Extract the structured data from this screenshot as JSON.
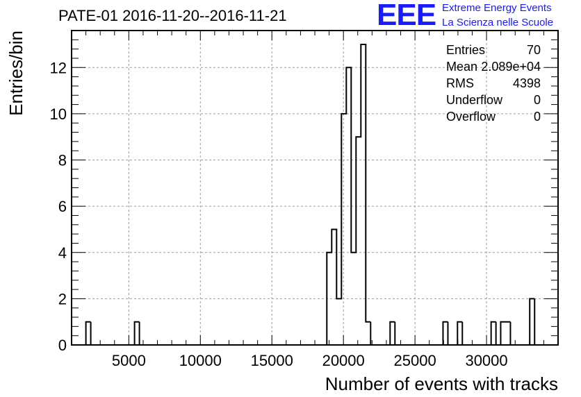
{
  "header": {
    "title": "PATE-01 2016-11-20--2016-11-21",
    "logo_mark": "EEE",
    "logo_line1": "Extreme Energy Events",
    "logo_line2": "La Scienza nelle Scuole",
    "logo_color": "#1a1aff"
  },
  "stats": [
    {
      "label": "Entries",
      "value": "70"
    },
    {
      "label": "Mean",
      "value": "2.089e+04"
    },
    {
      "label": "RMS",
      "value": "4398"
    },
    {
      "label": "Underflow",
      "value": "0"
    },
    {
      "label": "Overflow",
      "value": "0"
    }
  ],
  "chart_data": {
    "type": "histogram",
    "title": "PATE-01 2016-11-20--2016-11-21",
    "xlabel": "Number of events with tracks",
    "ylabel": "Entries/bin",
    "xlim": [
      1000,
      35000
    ],
    "ylim": [
      0,
      13.6
    ],
    "x_ticks": [
      5000,
      10000,
      15000,
      20000,
      25000,
      30000
    ],
    "y_ticks": [
      0,
      2,
      4,
      6,
      8,
      10,
      12
    ],
    "grid": true,
    "line_color": "#000000",
    "bins": [
      {
        "x0": 2000,
        "x1": 2340,
        "count": 1
      },
      {
        "x0": 5400,
        "x1": 5740,
        "count": 1
      },
      {
        "x0": 18840,
        "x1": 19180,
        "count": 4
      },
      {
        "x0": 19180,
        "x1": 19520,
        "count": 5
      },
      {
        "x0": 19520,
        "x1": 19860,
        "count": 2
      },
      {
        "x0": 19860,
        "x1": 20200,
        "count": 10
      },
      {
        "x0": 20200,
        "x1": 20540,
        "count": 12
      },
      {
        "x0": 20540,
        "x1": 20880,
        "count": 4
      },
      {
        "x0": 20880,
        "x1": 21220,
        "count": 9
      },
      {
        "x0": 21220,
        "x1": 21560,
        "count": 13
      },
      {
        "x0": 21560,
        "x1": 21900,
        "count": 1
      },
      {
        "x0": 23260,
        "x1": 23600,
        "count": 1
      },
      {
        "x0": 26960,
        "x1": 27300,
        "count": 1
      },
      {
        "x0": 27970,
        "x1": 28310,
        "count": 1
      },
      {
        "x0": 30320,
        "x1": 30660,
        "count": 1
      },
      {
        "x0": 30990,
        "x1": 31330,
        "count": 1
      },
      {
        "x0": 31330,
        "x1": 31670,
        "count": 1
      },
      {
        "x0": 33020,
        "x1": 33360,
        "count": 2
      }
    ]
  }
}
